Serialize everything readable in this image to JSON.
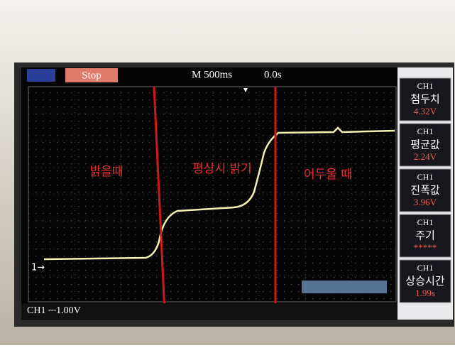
{
  "status": {
    "run_state": "Stop",
    "timebase": "M 500ms",
    "trigger_offset": "0.0s",
    "trigger_level_marker": "1→",
    "channel_scale": "CH1 ⎓1.00V"
  },
  "annotations": [
    "밝을때",
    "평상시 밝기",
    "어두울 때"
  ],
  "measurements": [
    {
      "channel": "CH1",
      "name": "첨두치",
      "value": "4.32V"
    },
    {
      "channel": "CH1",
      "name": "평균값",
      "value": "2.24V"
    },
    {
      "channel": "CH1",
      "name": "진폭값",
      "value": "3.96V"
    },
    {
      "channel": "CH1",
      "name": "주기",
      "value": "*****"
    },
    {
      "channel": "CH1",
      "name": "상승시간",
      "value": "1.99s"
    }
  ]
}
